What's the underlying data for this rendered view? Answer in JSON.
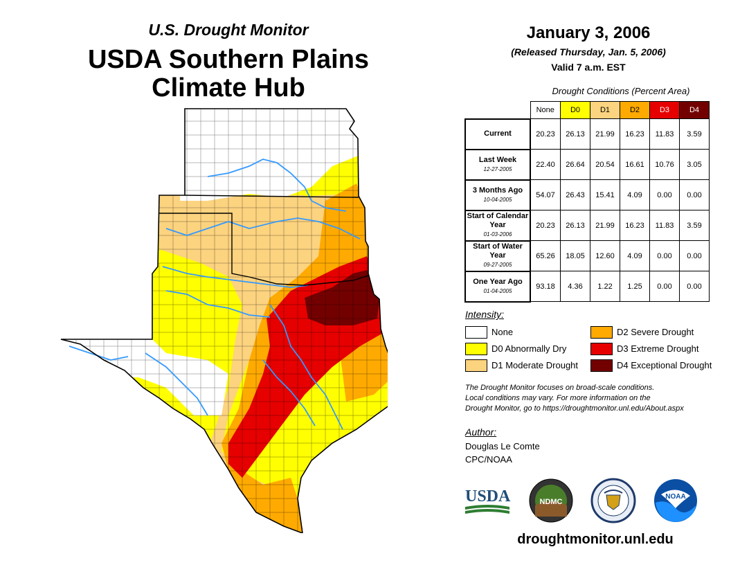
{
  "header": {
    "series": "U.S. Drought Monitor",
    "title_line1": "USDA Southern Plains",
    "title_line2": "Climate Hub"
  },
  "date_block": {
    "date": "January 3, 2006",
    "released": "(Released Thursday, Jan. 5, 2006)",
    "valid": "Valid 7 a.m. EST"
  },
  "table": {
    "caption": "Drought Conditions (Percent Area)",
    "columns": [
      "None",
      "D0",
      "D1",
      "D2",
      "D3",
      "D4"
    ],
    "column_colors": [
      "#ffffff",
      "#ffff00",
      "#fcd37f",
      "#ffaa00",
      "#e60000",
      "#730000"
    ],
    "rows": [
      {
        "label": "Current",
        "date": "",
        "values": [
          "20.23",
          "26.13",
          "21.99",
          "16.23",
          "11.83",
          "3.59"
        ]
      },
      {
        "label": "Last Week",
        "date": "12-27-2005",
        "values": [
          "22.40",
          "26.64",
          "20.54",
          "16.61",
          "10.76",
          "3.05"
        ]
      },
      {
        "label": "3 Months Ago",
        "date": "10-04-2005",
        "values": [
          "54.07",
          "26.43",
          "15.41",
          "4.09",
          "0.00",
          "0.00"
        ]
      },
      {
        "label": "Start of Calendar Year",
        "date": "01-03-2006",
        "values": [
          "20.23",
          "26.13",
          "21.99",
          "16.23",
          "11.83",
          "3.59"
        ]
      },
      {
        "label": "Start of Water Year",
        "date": "09-27-2005",
        "values": [
          "65.26",
          "18.05",
          "12.60",
          "4.09",
          "0.00",
          "0.00"
        ]
      },
      {
        "label": "One Year Ago",
        "date": "01-04-2005",
        "values": [
          "93.18",
          "4.36",
          "1.22",
          "1.25",
          "0.00",
          "0.00"
        ]
      }
    ]
  },
  "legend": {
    "title": "Intensity:",
    "items": [
      {
        "label": "None",
        "color": "#ffffff"
      },
      {
        "label": "D0 Abnormally Dry",
        "color": "#ffff00"
      },
      {
        "label": "D1 Moderate Drought",
        "color": "#fcd37f"
      },
      {
        "label": "D2 Severe Drought",
        "color": "#ffaa00"
      },
      {
        "label": "D3 Extreme Drought",
        "color": "#e60000"
      },
      {
        "label": "D4 Exceptional Drought",
        "color": "#730000"
      }
    ]
  },
  "note": {
    "line1": "The Drought Monitor focuses on broad-scale conditions.",
    "line2": "Local conditions may vary. For more information on the",
    "line3": "Drought Monitor, go to https://droughtmonitor.unl.edu/About.aspx"
  },
  "author": {
    "heading": "Author:",
    "name": "Douglas Le Comte",
    "org": "CPC/NOAA"
  },
  "logos": {
    "usda": "USDA",
    "ndmc": "NDMC",
    "noaa": "NOAA"
  },
  "website": "droughtmonitor.unl.edu",
  "colors": {
    "none": "#ffffff",
    "d0": "#ffff00",
    "d1": "#fcd37f",
    "d2": "#ffaa00",
    "d3": "#e60000",
    "d4": "#730000",
    "river": "#3399ff",
    "border": "#000000"
  }
}
